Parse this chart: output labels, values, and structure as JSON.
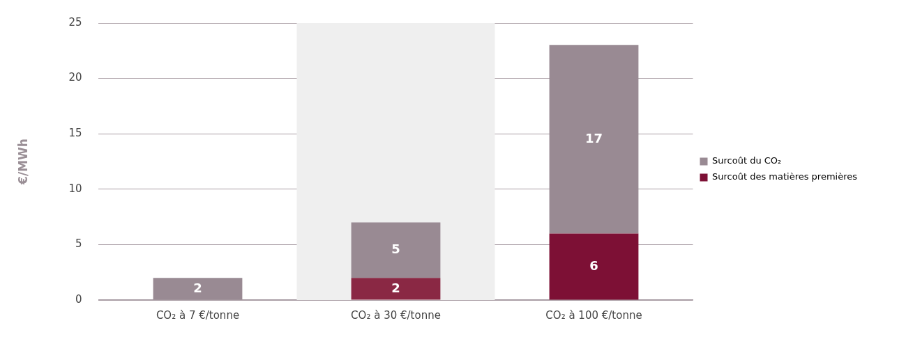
{
  "chart_data": {
    "type": "bar",
    "stacked": true,
    "ylabel": "€/MWh",
    "categories": [
      "CO₂ à 7 €/tonne",
      "CO₂ à 30 €/tonne",
      "CO₂ à 100 €/tonne"
    ],
    "series": [
      {
        "name": "Surcoût des matières premières",
        "color": "#7d1035",
        "colors": [
          "#7d1035",
          "#8a2844",
          "#7d1035"
        ],
        "values": [
          null,
          2,
          6
        ]
      },
      {
        "name": "Surcoût du CO₂",
        "color": "#998a93",
        "values": [
          2,
          5,
          17
        ]
      }
    ],
    "ylim": [
      0,
      25
    ],
    "yticks": [
      0,
      5,
      10,
      15,
      20,
      25
    ],
    "grid": "y",
    "legend": "right",
    "data_labels": true,
    "bands": [
      {
        "axis": "x",
        "from": "CO₂ à 30 €/tonne",
        "to": "CO₂ à 30 €/tonne",
        "color": "#efefef"
      }
    ]
  }
}
